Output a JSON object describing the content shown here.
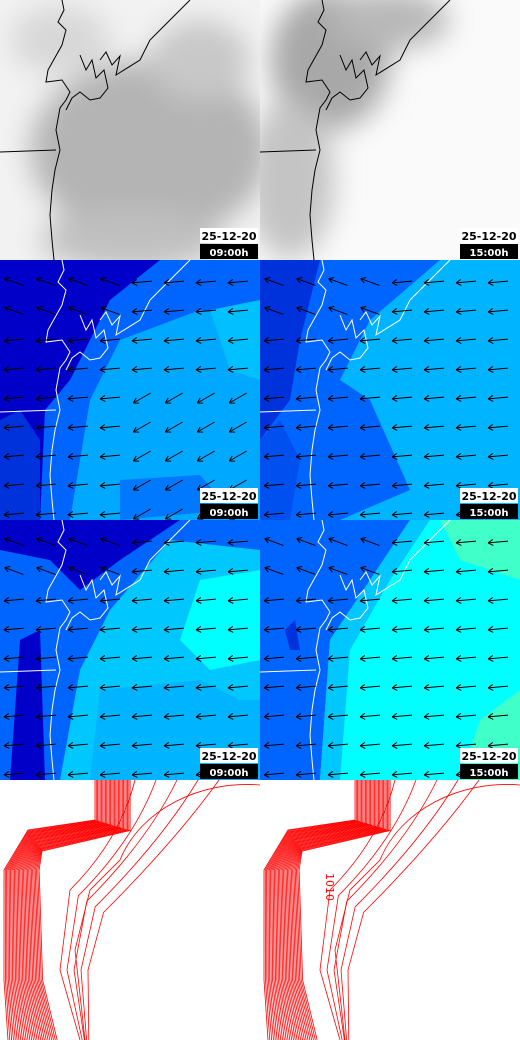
{
  "panels": [
    {
      "date": "25-12-20",
      "time": "09:00h"
    },
    {
      "date": "25-12-20",
      "time": "15:00h"
    },
    {
      "date": "25-12-20",
      "time": "09:00h"
    },
    {
      "date": "25-12-20",
      "time": "15:00h"
    },
    {
      "date": "25-12-20",
      "time": "09:00h"
    },
    {
      "date": "25-12-20",
      "time": "15:00h"
    }
  ],
  "contour_label": "1010"
}
